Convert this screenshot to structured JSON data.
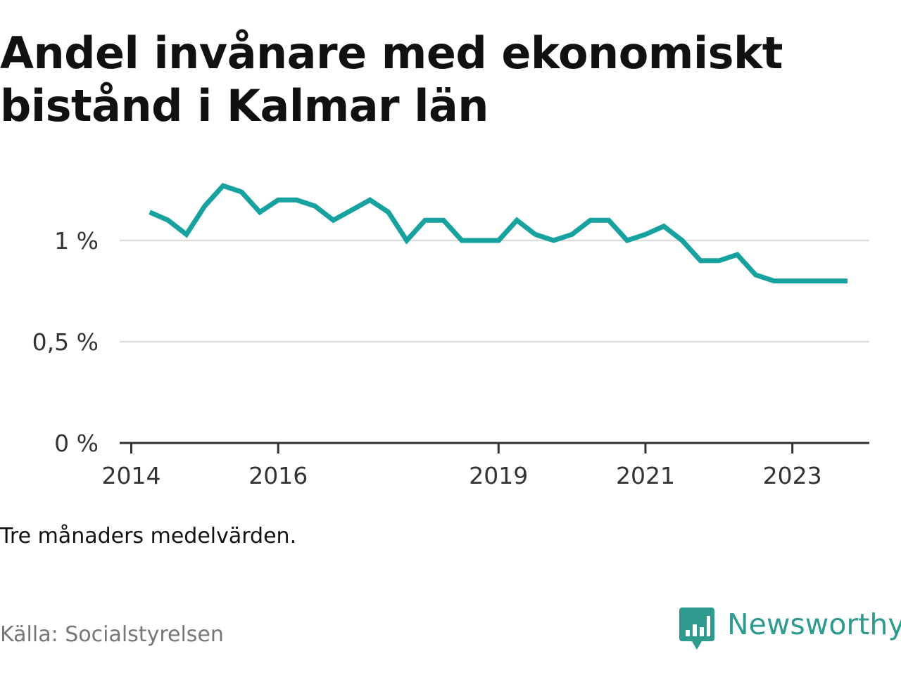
{
  "title": "Andel invånare med ekonomiskt bistånd i Kalmar län",
  "note": "Tre månaders medelvärden.",
  "source": "Källa: Socialstyrelsen",
  "brand": {
    "name": "Newsworthy",
    "icon": "newsworthy-logo-icon",
    "color": "#2f9b8f"
  },
  "colors": {
    "line": "#17a2a0",
    "grid": "#dddddd",
    "axis": "#333333"
  },
  "chart_data": {
    "type": "line",
    "title": "Andel invånare med ekonomiskt bistånd i Kalmar län",
    "xlabel": "",
    "ylabel": "",
    "x_ticks": [
      "2014",
      "2016",
      "2019",
      "2021",
      "2023"
    ],
    "y_ticks": [
      "0 %",
      "0,5 %",
      "1 %"
    ],
    "ylim": [
      0,
      1.25
    ],
    "xlim": [
      "2014-01",
      "2024-01"
    ],
    "grid": true,
    "legend": "none",
    "series": [
      {
        "x": [
          "2014-04",
          "2014-07",
          "2014-10",
          "2015-01",
          "2015-04",
          "2015-07",
          "2015-10",
          "2016-01",
          "2016-04",
          "2016-07",
          "2016-10",
          "2017-01",
          "2017-04",
          "2017-07",
          "2017-10",
          "2018-01",
          "2018-04",
          "2018-07",
          "2018-10",
          "2019-01",
          "2019-04",
          "2019-07",
          "2019-10",
          "2020-01",
          "2020-04",
          "2020-07",
          "2020-10",
          "2021-01",
          "2021-04",
          "2021-07",
          "2021-10",
          "2022-01",
          "2022-04",
          "2022-07",
          "2022-10",
          "2023-01",
          "2023-04",
          "2023-07",
          "2023-10"
        ],
        "values": [
          1.14,
          1.1,
          1.03,
          1.17,
          1.27,
          1.24,
          1.14,
          1.2,
          1.2,
          1.17,
          1.1,
          1.15,
          1.2,
          1.14,
          1.0,
          1.1,
          1.1,
          1.0,
          1.0,
          1.0,
          1.1,
          1.03,
          1.0,
          1.03,
          1.1,
          1.1,
          1.0,
          1.03,
          1.07,
          1.0,
          0.9,
          0.9,
          0.93,
          0.83,
          0.8,
          0.8,
          0.8,
          0.8,
          0.8
        ]
      }
    ]
  }
}
